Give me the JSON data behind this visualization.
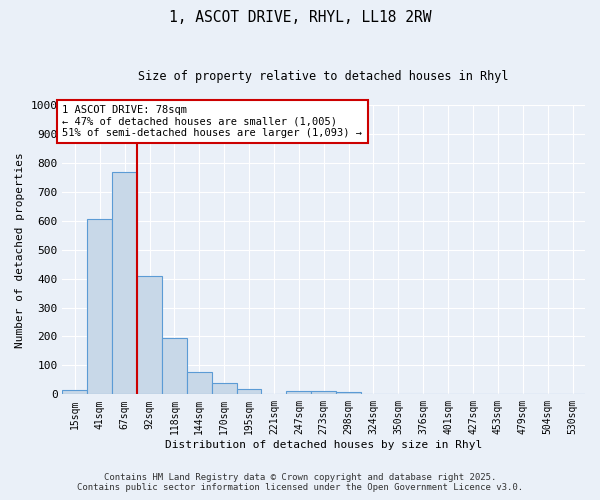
{
  "title_line1": "1, ASCOT DRIVE, RHYL, LL18 2RW",
  "title_line2": "Size of property relative to detached houses in Rhyl",
  "xlabel": "Distribution of detached houses by size in Rhyl",
  "ylabel": "Number of detached properties",
  "categories": [
    "15sqm",
    "41sqm",
    "67sqm",
    "92sqm",
    "118sqm",
    "144sqm",
    "170sqm",
    "195sqm",
    "221sqm",
    "247sqm",
    "273sqm",
    "298sqm",
    "324sqm",
    "350sqm",
    "376sqm",
    "401sqm",
    "427sqm",
    "453sqm",
    "479sqm",
    "504sqm",
    "530sqm"
  ],
  "values": [
    15,
    605,
    770,
    410,
    193,
    78,
    38,
    18,
    0,
    12,
    12,
    8,
    0,
    0,
    0,
    0,
    0,
    0,
    0,
    0,
    0
  ],
  "bar_color": "#c8d8e8",
  "bar_edge_color": "#5b9bd5",
  "vline_color": "#cc0000",
  "annotation_text": "1 ASCOT DRIVE: 78sqm\n← 47% of detached houses are smaller (1,005)\n51% of semi-detached houses are larger (1,093) →",
  "annotation_box_color": "#ffffff",
  "annotation_box_edge": "#cc0000",
  "ylim": [
    0,
    1000
  ],
  "yticks": [
    0,
    100,
    200,
    300,
    400,
    500,
    600,
    700,
    800,
    900,
    1000
  ],
  "footer_line1": "Contains HM Land Registry data © Crown copyright and database right 2025.",
  "footer_line2": "Contains public sector information licensed under the Open Government Licence v3.0.",
  "bg_color": "#eaf0f8",
  "plot_bg_color": "#eaf0f8",
  "grid_color": "#ffffff"
}
